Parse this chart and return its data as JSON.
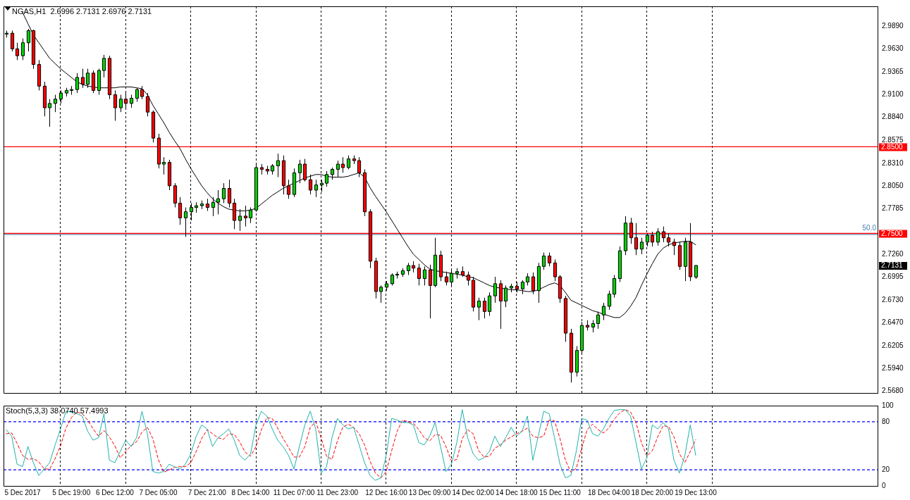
{
  "chart_data": [
    {
      "type": "candlestick",
      "title": "NGAS,H1  2.6996 2.7131 2.6976 2.7131",
      "categories": [
        null,
        null,
        null,
        null,
        null,
        null,
        null,
        null,
        null,
        null,
        null,
        null,
        null,
        null,
        null,
        null,
        null,
        null,
        null,
        null,
        null,
        null,
        null,
        null,
        null,
        null,
        null,
        null,
        null,
        null,
        null,
        null,
        null,
        null,
        null,
        null,
        null,
        null,
        null,
        null,
        null,
        null,
        null,
        null,
        null,
        null,
        null,
        null,
        null,
        null,
        null,
        null,
        null,
        null,
        null,
        null,
        null,
        null,
        null,
        null,
        null,
        null,
        null,
        null,
        null,
        null,
        null,
        null,
        null,
        null,
        null,
        null,
        null,
        null,
        null,
        null,
        null,
        null,
        null,
        null,
        null,
        null,
        null,
        null,
        null,
        null,
        null,
        null,
        null,
        null,
        null,
        null,
        null,
        null,
        null,
        null,
        null,
        null,
        null,
        null,
        null,
        null,
        null,
        null,
        null,
        null,
        null,
        null,
        null,
        null,
        null,
        null,
        null,
        null,
        null,
        null,
        null,
        null,
        null,
        null,
        null,
        null,
        null,
        null,
        null,
        null,
        null,
        null
      ],
      "ohlc": [
        [
          2.98,
          2.984,
          2.976,
          2.981
        ],
        [
          2.981,
          2.984,
          2.96,
          2.963
        ],
        [
          2.963,
          2.97,
          2.95,
          2.955
        ],
        [
          2.955,
          2.975,
          2.95,
          2.97
        ],
        [
          2.97,
          2.986,
          2.96,
          2.984
        ],
        [
          2.984,
          2.985,
          2.94,
          2.945
        ],
        [
          2.945,
          2.95,
          2.915,
          2.92
        ],
        [
          2.92,
          2.925,
          2.885,
          2.895
        ],
        [
          2.895,
          2.905,
          2.873,
          2.9
        ],
        [
          2.9,
          2.91,
          2.89,
          2.905
        ],
        [
          2.905,
          2.915,
          2.9,
          2.912
        ],
        [
          2.912,
          2.918,
          2.908,
          2.915
        ],
        [
          2.915,
          2.92,
          2.91,
          2.916
        ],
        [
          2.916,
          2.935,
          2.912,
          2.93
        ],
        [
          2.93,
          2.94,
          2.918,
          2.922
        ],
        [
          2.922,
          2.94,
          2.918,
          2.935
        ],
        [
          2.935,
          2.938,
          2.912,
          2.915
        ],
        [
          2.915,
          2.94,
          2.91,
          2.938
        ],
        [
          2.938,
          2.956,
          2.93,
          2.952
        ],
        [
          2.952,
          2.955,
          2.905,
          2.91
        ],
        [
          2.91,
          2.915,
          2.88,
          2.895
        ],
        [
          2.895,
          2.91,
          2.89,
          2.905
        ],
        [
          2.905,
          2.912,
          2.895,
          2.9
        ],
        [
          2.9,
          2.91,
          2.895,
          2.906
        ],
        [
          2.906,
          2.918,
          2.902,
          2.916
        ],
        [
          2.916,
          2.92,
          2.905,
          2.908
        ],
        [
          2.908,
          2.912,
          2.885,
          2.89
        ],
        [
          2.89,
          2.892,
          2.855,
          2.86
        ],
        [
          2.86,
          2.865,
          2.825,
          2.83
        ],
        [
          2.83,
          2.838,
          2.818,
          2.832
        ],
        [
          2.832,
          2.835,
          2.8,
          2.805
        ],
        [
          2.805,
          2.808,
          2.78,
          2.785
        ],
        [
          2.785,
          2.792,
          2.76,
          2.768
        ],
        [
          2.768,
          2.78,
          2.746,
          2.775
        ],
        [
          2.775,
          2.785,
          2.765,
          2.78
        ],
        [
          2.78,
          2.786,
          2.774,
          2.782
        ],
        [
          2.782,
          2.788,
          2.778,
          2.784
        ],
        [
          2.784,
          2.79,
          2.776,
          2.78
        ],
        [
          2.78,
          2.792,
          2.77,
          2.786
        ],
        [
          2.786,
          2.8,
          2.772,
          2.79
        ],
        [
          2.79,
          2.808,
          2.785,
          2.802
        ],
        [
          2.802,
          2.812,
          2.78,
          2.785
        ],
        [
          2.785,
          2.79,
          2.755,
          2.765
        ],
        [
          2.765,
          2.778,
          2.753,
          2.77
        ],
        [
          2.77,
          2.782,
          2.758,
          2.768
        ],
        [
          2.768,
          2.78,
          2.762,
          2.777
        ],
        [
          2.777,
          2.83,
          2.775,
          2.826
        ],
        [
          2.826,
          2.83,
          2.818,
          2.824
        ],
        [
          2.824,
          2.828,
          2.818,
          2.822
        ],
        [
          2.822,
          2.83,
          2.818,
          2.828
        ],
        [
          2.828,
          2.842,
          2.815,
          2.834
        ],
        [
          2.834,
          2.84,
          2.795,
          2.805
        ],
        [
          2.805,
          2.812,
          2.79,
          2.795
        ],
        [
          2.795,
          2.825,
          2.792,
          2.82
        ],
        [
          2.82,
          2.835,
          2.808,
          2.83
        ],
        [
          2.83,
          2.836,
          2.81,
          2.812
        ],
        [
          2.812,
          2.818,
          2.795,
          2.8
        ],
        [
          2.8,
          2.812,
          2.792,
          2.806
        ],
        [
          2.806,
          2.812,
          2.798,
          2.808
        ],
        [
          2.808,
          2.822,
          2.804,
          2.818
        ],
        [
          2.818,
          2.826,
          2.812,
          2.824
        ],
        [
          2.824,
          2.834,
          2.815,
          2.83
        ],
        [
          2.83,
          2.838,
          2.82,
          2.826
        ],
        [
          2.826,
          2.84,
          2.824,
          2.836
        ],
        [
          2.836,
          2.84,
          2.83,
          2.834
        ],
        [
          2.834,
          2.838,
          2.815,
          2.82
        ],
        [
          2.82,
          2.824,
          2.77,
          2.775
        ],
        [
          2.775,
          2.778,
          2.71,
          2.718
        ],
        [
          2.718,
          2.722,
          2.675,
          2.683
        ],
        [
          2.683,
          2.69,
          2.67,
          2.688
        ],
        [
          2.688,
          2.695,
          2.684,
          2.692
        ],
        [
          2.692,
          2.704,
          2.69,
          2.702
        ],
        [
          2.702,
          2.706,
          2.698,
          2.703
        ],
        [
          2.703,
          2.71,
          2.7,
          2.707
        ],
        [
          2.707,
          2.716,
          2.702,
          2.713
        ],
        [
          2.713,
          2.718,
          2.705,
          2.71
        ],
        [
          2.71,
          2.715,
          2.69,
          2.698
        ],
        [
          2.698,
          2.712,
          2.69,
          2.708
        ],
        [
          2.708,
          2.714,
          2.652,
          2.69
        ],
        [
          2.69,
          2.745,
          2.688,
          2.725
        ],
        [
          2.725,
          2.73,
          2.695,
          2.7
        ],
        [
          2.7,
          2.706,
          2.69,
          2.694
        ],
        [
          2.694,
          2.708,
          2.69,
          2.704
        ],
        [
          2.704,
          2.71,
          2.698,
          2.706
        ],
        [
          2.706,
          2.712,
          2.7,
          2.702
        ],
        [
          2.702,
          2.706,
          2.69,
          2.696
        ],
        [
          2.696,
          2.7,
          2.66,
          2.665
        ],
        [
          2.665,
          2.676,
          2.65,
          2.672
        ],
        [
          2.672,
          2.676,
          2.652,
          2.66
        ],
        [
          2.66,
          2.682,
          2.655,
          2.678
        ],
        [
          2.678,
          2.7,
          2.67,
          2.692
        ],
        [
          2.692,
          2.696,
          2.64,
          2.672
        ],
        [
          2.672,
          2.69,
          2.665,
          2.687
        ],
        [
          2.687,
          2.692,
          2.682,
          2.689
        ],
        [
          2.689,
          2.694,
          2.682,
          2.686
        ],
        [
          2.686,
          2.696,
          2.68,
          2.694
        ],
        [
          2.694,
          2.704,
          2.69,
          2.7
        ],
        [
          2.7,
          2.705,
          2.68,
          2.684
        ],
        [
          2.684,
          2.716,
          2.67,
          2.712
        ],
        [
          2.712,
          2.728,
          2.708,
          2.724
        ],
        [
          2.724,
          2.728,
          2.712,
          2.716
        ],
        [
          2.716,
          2.72,
          2.695,
          2.7
        ],
        [
          2.7,
          2.702,
          2.67,
          2.675
        ],
        [
          2.675,
          2.678,
          2.625,
          2.635
        ],
        [
          2.635,
          2.64,
          2.578,
          2.59
        ],
        [
          2.59,
          2.62,
          2.585,
          2.615
        ],
        [
          2.615,
          2.648,
          2.612,
          2.644
        ],
        [
          2.644,
          2.65,
          2.638,
          2.642
        ],
        [
          2.642,
          2.65,
          2.636,
          2.646
        ],
        [
          2.646,
          2.66,
          2.64,
          2.656
        ],
        [
          2.656,
          2.67,
          2.65,
          2.666
        ],
        [
          2.666,
          2.684,
          2.662,
          2.68
        ],
        [
          2.68,
          2.702,
          2.676,
          2.698
        ],
        [
          2.698,
          2.735,
          2.694,
          2.73
        ],
        [
          2.73,
          2.77,
          2.725,
          2.762
        ],
        [
          2.762,
          2.768,
          2.738,
          2.745
        ],
        [
          2.745,
          2.762,
          2.725,
          2.732
        ],
        [
          2.732,
          2.745,
          2.726,
          2.74
        ],
        [
          2.74,
          2.75,
          2.735,
          2.748
        ],
        [
          2.748,
          2.752,
          2.735,
          2.74
        ],
        [
          2.74,
          2.756,
          2.736,
          2.752
        ],
        [
          2.752,
          2.758,
          2.74,
          2.745
        ],
        [
          2.745,
          2.75,
          2.735,
          2.74
        ],
        [
          2.74,
          2.744,
          2.725,
          2.736
        ],
        [
          2.736,
          2.74,
          2.708,
          2.712
        ],
        [
          2.712,
          2.745,
          2.695,
          2.74
        ],
        [
          2.74,
          2.762,
          2.695,
          2.7
        ],
        [
          2.6996,
          2.7131,
          2.6976,
          2.7131
        ]
      ],
      "colors": [
        "#00d000",
        "#ff0000",
        "#ff0000",
        "#00d000",
        "#00d000",
        "#ff0000",
        "#ff0000",
        "#ff0000",
        "#00d000",
        "#00d000",
        "#00d000",
        "#00d000",
        "#00d000",
        "#00d000",
        "#ff0000",
        "#00d000",
        "#ff0000",
        "#00d000",
        "#00d000",
        "#ff0000",
        "#ff0000",
        "#00d000",
        "#ff0000",
        "#00d000",
        "#00d000",
        "#ff0000",
        "#ff0000",
        "#ff0000",
        "#ff0000",
        "#00d000",
        "#ff0000",
        "#ff0000",
        "#ff0000",
        "#00d000",
        "#00d000",
        "#00d000",
        "#00d000",
        "#ff0000",
        "#00d000",
        "#00d000",
        "#00d000",
        "#ff0000",
        "#ff0000",
        "#00d000",
        "#ff0000",
        "#00d000",
        "#00d000",
        "#ff0000",
        "#ff0000",
        "#00d000",
        "#00d000",
        "#ff0000",
        "#ff0000",
        "#00d000",
        "#00d000",
        "#ff0000",
        "#ff0000",
        "#00d000",
        "#00d000",
        "#00d000",
        "#00d000",
        "#00d000",
        "#ff0000",
        "#00d000",
        "#ff0000",
        "#ff0000",
        "#ff0000",
        "#ff0000",
        "#ff0000",
        "#00d000",
        "#00d000",
        "#00d000",
        "#00d000",
        "#00d000",
        "#00d000",
        "#ff0000",
        "#ff0000",
        "#00d000",
        "#ff0000",
        "#00d000",
        "#ff0000",
        "#ff0000",
        "#00d000",
        "#00d000",
        "#ff0000",
        "#ff0000",
        "#ff0000",
        "#00d000",
        "#ff0000",
        "#00d000",
        "#00d000",
        "#ff0000",
        "#00d000",
        "#00d000",
        "#ff0000",
        "#00d000",
        "#00d000",
        "#ff0000",
        "#00d000",
        "#00d000",
        "#ff0000",
        "#ff0000",
        "#ff0000",
        "#ff0000",
        "#ff0000",
        "#00d000",
        "#00d000",
        "#ff0000",
        "#00d000",
        "#00d000",
        "#00d000",
        "#00d000",
        "#00d000",
        "#00d000",
        "#00d000",
        "#ff0000",
        "#ff0000",
        "#00d000",
        "#00d000",
        "#ff0000",
        "#00d000",
        "#ff0000",
        "#ff0000",
        "#ff0000",
        "#ff0000",
        "#00d000",
        "#ff0000",
        "#00d000"
      ],
      "series": [
        {
          "type": "line",
          "color": "#000000",
          "values": [
            null,
            null,
            null,
            3.005,
            2.992,
            2.979,
            2.97,
            2.961,
            2.952,
            2.946,
            2.94,
            2.935,
            2.93,
            2.925,
            2.922,
            2.92,
            2.919,
            2.918,
            2.918,
            2.918,
            2.918,
            2.919,
            2.919,
            2.919,
            2.918,
            2.917,
            2.91,
            2.898,
            2.888,
            2.878,
            2.867,
            2.857,
            2.848,
            2.836,
            2.825,
            2.815,
            2.805,
            2.797,
            2.79,
            2.785,
            2.781,
            2.778,
            2.777,
            2.776,
            2.776,
            2.777,
            2.779,
            2.784,
            2.789,
            2.794,
            2.798,
            2.802,
            2.805,
            2.808,
            2.811,
            2.814,
            2.816,
            2.818,
            2.818,
            2.816,
            2.815,
            2.815,
            2.815,
            2.816,
            2.818,
            2.82,
            2.815,
            2.803,
            2.793,
            2.784,
            2.775,
            2.765,
            2.755,
            2.745,
            2.735,
            2.726,
            2.72,
            2.714,
            2.709,
            2.707,
            2.706,
            2.705,
            2.704,
            2.703,
            2.702,
            2.7,
            2.699,
            2.696,
            2.693,
            2.69,
            2.688,
            2.687,
            2.686,
            2.685,
            2.685,
            2.684,
            2.683,
            2.683,
            2.685,
            2.688,
            2.691,
            2.693,
            2.69,
            2.682,
            2.673,
            2.67,
            2.667,
            2.664,
            2.661,
            2.659,
            2.657,
            2.655,
            2.653,
            2.653,
            2.658,
            2.666,
            2.676,
            2.69,
            2.703,
            2.715,
            2.726,
            2.733,
            2.737,
            2.739,
            2.74,
            2.741,
            2.741,
            2.737
          ]
        }
      ],
      "ylim": [
        2.566,
        3.012
      ],
      "yticks": [
        {
          "value": 2.989,
          "label": "2.9890"
        },
        {
          "value": 2.963,
          "label": "2.9630"
        },
        {
          "value": 2.9365,
          "label": "2.9365"
        },
        {
          "value": 2.91,
          "label": "2.9100"
        },
        {
          "value": 2.884,
          "label": "2.8840"
        },
        {
          "value": 2.8575,
          "label": "2.8575"
        },
        {
          "value": 2.831,
          "label": "2.8310"
        },
        {
          "value": 2.805,
          "label": "2.8050"
        },
        {
          "value": 2.7785,
          "label": "2.7785"
        },
        {
          "value": 2.726,
          "label": "2.7260"
        },
        {
          "value": 2.6995,
          "label": "2.6995"
        },
        {
          "value": 2.673,
          "label": "2.6730"
        },
        {
          "value": 2.647,
          "label": "2.6470"
        },
        {
          "value": 2.6205,
          "label": "2.6205"
        },
        {
          "value": 2.594,
          "label": "2.5940"
        },
        {
          "value": 2.568,
          "label": "2.5680"
        }
      ],
      "ref_lines": [
        {
          "axis": "y",
          "value": 2.85,
          "label": "2.8500",
          "color": "#ff0000"
        },
        {
          "axis": "y",
          "value": 2.75,
          "label": "2.7500",
          "color": "#ff0000"
        },
        {
          "axis": "y",
          "value": 2.75,
          "color": "#4682b4"
        }
      ],
      "annotations": [
        "50.0",
        "2.7131"
      ],
      "grid": "x",
      "legend": false,
      "marker": "none",
      "tick_labels": "y"
    },
    {
      "type": "line",
      "title": "Stoch(5,3,3) 38.0740 57.4993",
      "categories": [
        null,
        null,
        null,
        "5 Dec 2017",
        null,
        null,
        null,
        null,
        null,
        null,
        null,
        null,
        "5 Dec 19:00",
        null,
        null,
        null,
        null,
        null,
        null,
        null,
        "6 Dec 12:00",
        null,
        null,
        null,
        null,
        null,
        null,
        null,
        "7 Dec 05:00",
        null,
        null,
        null,
        null,
        null,
        null,
        null,
        null,
        "7 Dec 21:00",
        null,
        null,
        null,
        null,
        null,
        null,
        null,
        "8 Dec 14:00",
        null,
        null,
        null,
        null,
        null,
        null,
        null,
        "11 Dec 07:00",
        null,
        null,
        null,
        null,
        null,
        null,
        null,
        "11 Dec 23:00",
        null,
        null,
        null,
        null,
        null,
        null,
        null,
        null,
        "12 Dec 16:00",
        null,
        null,
        null,
        null,
        null,
        null,
        null,
        "13 Dec 09:00",
        null,
        null,
        null,
        null,
        null,
        null,
        null,
        "14 Dec 02:00",
        null,
        null,
        null,
        null,
        null,
        null,
        null,
        "14 Dec 18:00",
        null,
        null,
        null,
        null,
        null,
        null,
        null,
        "15 Dec 11:00",
        null,
        null,
        null,
        null,
        null,
        null,
        null,
        null,
        "18 Dec 04:00",
        null,
        null,
        null,
        null,
        null,
        null,
        null,
        "18 Dec 20:00",
        null,
        null,
        null,
        null,
        null,
        null,
        null,
        "19 Dec 13:00"
      ],
      "series": [
        {
          "color": "#20b2aa",
          "values": [
            70,
            62,
            27,
            24,
            49,
            29,
            13,
            21,
            29,
            51,
            71,
            93,
            92,
            90,
            87,
            68,
            57,
            60,
            90,
            32,
            29,
            43,
            57,
            49,
            60,
            93,
            65,
            18,
            16,
            18,
            27,
            24,
            21,
            27,
            40,
            62,
            76,
            71,
            49,
            60,
            65,
            71,
            57,
            38,
            32,
            40,
            76,
            93,
            87,
            71,
            57,
            49,
            38,
            21,
            49,
            76,
            93,
            71,
            16,
            24,
            60,
            84,
            76,
            71,
            73,
            51,
            29,
            13,
            7,
            10,
            38,
            84,
            82,
            79,
            79,
            76,
            54,
            51,
            62,
            79,
            49,
            18,
            27,
            54,
            95,
            60,
            40,
            32,
            35,
            43,
            62,
            49,
            60,
            73,
            62,
            68,
            87,
            32,
            62,
            93,
            90,
            60,
            27,
            10,
            13,
            43,
            84,
            82,
            65,
            62,
            71,
            84,
            94,
            95,
            95,
            87,
            54,
            21,
            35,
            76,
            71,
            79,
            71,
            32,
            16,
            38,
            76,
            38.074
          ]
        },
        {
          "color": "#ff0000",
          "line_style": "dashed",
          "values": [
            65,
            66,
            53,
            38,
            33,
            34,
            30,
            21,
            21,
            34,
            50,
            72,
            85,
            92,
            90,
            82,
            71,
            62,
            69,
            61,
            50,
            35,
            43,
            50,
            55,
            67,
            73,
            59,
            33,
            17,
            20,
            23,
            24,
            24,
            29,
            43,
            59,
            70,
            65,
            60,
            58,
            65,
            64,
            55,
            42,
            37,
            49,
            70,
            85,
            84,
            72,
            59,
            48,
            36,
            36,
            49,
            73,
            80,
            60,
            37,
            33,
            56,
            73,
            77,
            73,
            65,
            51,
            31,
            16,
            10,
            18,
            44,
            68,
            82,
            80,
            78,
            70,
            60,
            56,
            64,
            63,
            49,
            31,
            33,
            59,
            70,
            65,
            44,
            36,
            37,
            47,
            51,
            57,
            61,
            65,
            68,
            72,
            62,
            60,
            62,
            82,
            81,
            59,
            32,
            17,
            22,
            47,
            70,
            77,
            70,
            66,
            72,
            83,
            91,
            95,
            92,
            79,
            54,
            37,
            44,
            61,
            75,
            74,
            61,
            40,
            29,
            43,
            57.4993
          ]
        }
      ],
      "ylim": [
        0,
        100
      ],
      "yticks": [
        0,
        20,
        80,
        100
      ],
      "ref_lines": [
        {
          "axis": "y",
          "value": 80,
          "color": "#0000ff",
          "line_style": "dashed"
        },
        {
          "axis": "y",
          "value": 20,
          "color": "#0000ff",
          "line_style": "dashed"
        }
      ],
      "grid": "x",
      "legend": false,
      "marker": "none"
    }
  ]
}
